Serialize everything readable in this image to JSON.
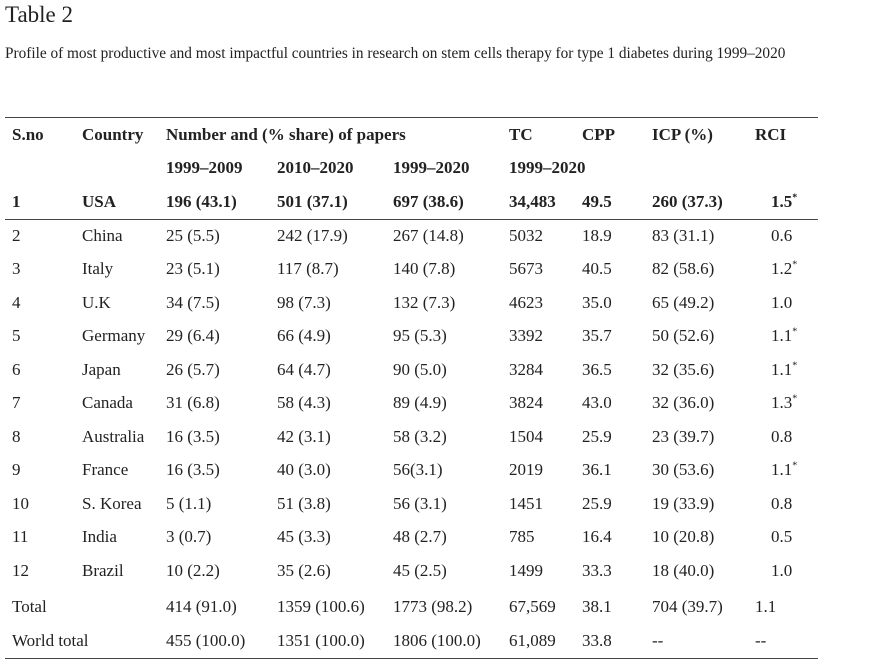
{
  "title": "Table 2",
  "caption": "Profile of most productive and most impactful countries in research on stem cells therapy for type 1 diabetes during 1999–2020",
  "table": {
    "header": [
      "S.no",
      "Country",
      "Number and (% share) of papers",
      "TC",
      "CPP",
      "ICP (%)",
      "RCI"
    ],
    "subheader": [
      "1999–2009",
      "2010–2020",
      "1999–2020",
      "1999–2020"
    ],
    "rows": [
      {
        "sno": "1",
        "country": "USA",
        "p1": "196 (43.1)",
        "p2": "501 (37.1)",
        "p3": "697 (38.6)",
        "tc": "34,483",
        "cpp": "49.5",
        "icp": "260 (37.3)",
        "rci": "1.5",
        "rci_note": "*"
      },
      {
        "sno": "2",
        "country": "China",
        "p1": "25 (5.5)",
        "p2": "242 (17.9)",
        "p3": "267 (14.8)",
        "tc": "5032",
        "cpp": "18.9",
        "icp": "83 (31.1)",
        "rci": "0.6"
      },
      {
        "sno": "3",
        "country": "Italy",
        "p1": "23 (5.1)",
        "p2": "117 (8.7)",
        "p3": "140 (7.8)",
        "tc": "5673",
        "cpp": "40.5",
        "icp": "82 (58.6)",
        "rci": "1.2",
        "rci_note": "*"
      },
      {
        "sno": "4",
        "country": "U.K",
        "p1": "34 (7.5)",
        "p2": "98 (7.3)",
        "p3": "132 (7.3)",
        "tc": "4623",
        "cpp": "35.0",
        "icp": "65 (49.2)",
        "rci": "1.0"
      },
      {
        "sno": "5",
        "country": "Germany",
        "p1": "29 (6.4)",
        "p2": "66 (4.9)",
        "p3": "95 (5.3)",
        "tc": "3392",
        "cpp": "35.7",
        "icp": "50 (52.6)",
        "rci": "1.1",
        "rci_note": "*"
      },
      {
        "sno": "6",
        "country": "Japan",
        "p1": "26 (5.7)",
        "p2": "64 (4.7)",
        "p3": "90 (5.0)",
        "tc": "3284",
        "cpp": "36.5",
        "icp": "32 (35.6)",
        "rci": "1.1",
        "rci_note": "*"
      },
      {
        "sno": "7",
        "country": "Canada",
        "p1": "31 (6.8)",
        "p2": "58 (4.3)",
        "p3": "89 (4.9)",
        "tc": "3824",
        "cpp": "43.0",
        "icp": "32 (36.0)",
        "rci": "1.3",
        "rci_note": "*"
      },
      {
        "sno": "8",
        "country": "Australia",
        "p1": "16 (3.5)",
        "p2": "42 (3.1)",
        "p3": "58 (3.2)",
        "tc": "1504",
        "cpp": "25.9",
        "icp": "23 (39.7)",
        "rci": "0.8"
      },
      {
        "sno": "9",
        "country": "France",
        "p1": "16 (3.5)",
        "p2": "40 (3.0)",
        "p3": "56(3.1)",
        "tc": "2019",
        "cpp": "36.1",
        "icp": "30 (53.6)",
        "rci": "1.1",
        "rci_note": "*"
      },
      {
        "sno": "10",
        "country": "S. Korea",
        "p1": "5 (1.1)",
        "p2": "51 (3.8)",
        "p3": "56 (3.1)",
        "tc": "1451",
        "cpp": "25.9",
        "icp": "19 (33.9)",
        "rci": "0.8"
      },
      {
        "sno": "11",
        "country": "India",
        "p1": "3 (0.7)",
        "p2": "45 (3.3)",
        "p3": "48 (2.7)",
        "tc": "785",
        "cpp": "16.4",
        "icp": "10 (20.8)",
        "rci": "0.5"
      },
      {
        "sno": "12",
        "country": "Brazil",
        "p1": "10 (2.2)",
        "p2": "35 (2.6)",
        "p3": "45 (2.5)",
        "tc": "1499",
        "cpp": "33.3",
        "icp": "18 (40.0)",
        "rci": "1.0"
      }
    ],
    "totals": [
      {
        "label": "Total",
        "p1": "414 (91.0)",
        "p2": "1359 (100.6)",
        "p3": "1773 (98.2)",
        "tc": "67,569",
        "cpp": "38.1",
        "icp": "704 (39.7)",
        "rci": "1.1"
      },
      {
        "label": "World total",
        "p1": "455 (100.0)",
        "p2": "1351 (100.0)",
        "p3": "1806 (100.0)",
        "tc": "61,089",
        "cpp": "33.8",
        "icp": "--",
        "rci": "--"
      }
    ]
  }
}
